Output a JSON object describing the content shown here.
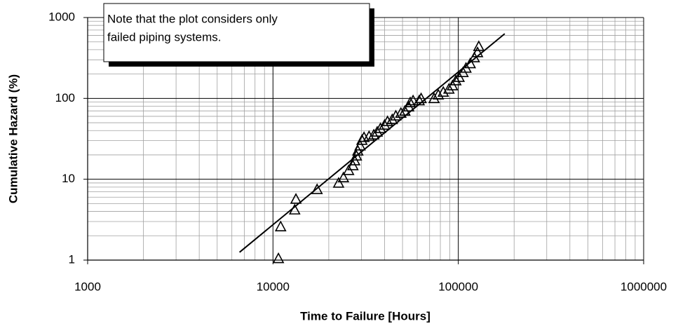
{
  "chart_data": {
    "type": "scatter",
    "xlabel": "Time to Failure [Hours]",
    "ylabel": "Cumulative Hazard (%)",
    "annotation": [
      "Note that the plot considers only",
      "failed piping systems."
    ],
    "xscale": "log",
    "yscale": "log",
    "xlim": [
      1000,
      1000000
    ],
    "ylim": [
      1,
      1000
    ],
    "xticks": [
      1000,
      10000,
      100000,
      1000000
    ],
    "yticks": [
      1,
      10,
      100,
      1000
    ],
    "grid": true,
    "minor_grid": true,
    "marker": "triangle",
    "color": "#000000",
    "points": {
      "x": [
        10700,
        11000,
        13100,
        13300,
        17300,
        22600,
        24000,
        25600,
        27000,
        27600,
        28200,
        28700,
        29500,
        30200,
        31000,
        33000,
        35000,
        36500,
        38000,
        40000,
        41500,
        44000,
        46000,
        49000,
        51500,
        54000,
        55000,
        57000,
        61500,
        63000,
        74000,
        78000,
        83000,
        89000,
        93000,
        97000,
        101000,
        106000,
        110000,
        116000,
        122000,
        127000,
        129000
      ],
      "y": [
        1.05,
        2.6,
        4.2,
        5.7,
        7.5,
        9.0,
        10.5,
        12.9,
        14.8,
        17,
        19.5,
        22.5,
        26,
        30.5,
        33,
        34,
        35.5,
        38.6,
        42.6,
        47,
        52,
        55,
        61,
        66,
        70,
        79,
        89,
        94,
        94,
        100,
        100,
        111,
        120,
        131,
        144,
        166,
        183,
        210,
        238,
        270,
        320,
        370,
        440
      ]
    },
    "fit_line": {
      "x": [
        6600,
        178000
      ],
      "y": [
        1.25,
        630
      ]
    }
  }
}
